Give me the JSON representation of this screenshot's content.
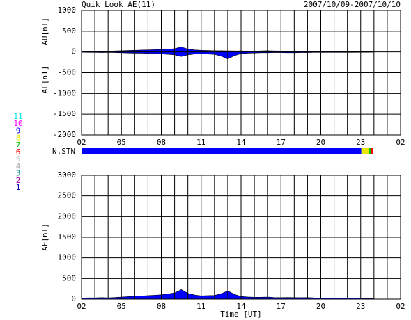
{
  "header": {
    "title": "Quik Look AE(11)",
    "date": "2007/10/09-2007/10/10"
  },
  "stations": {
    "label": "N.STN",
    "legend": [
      {
        "label": 11,
        "color": "#00e0e0"
      },
      {
        "label": 10,
        "color": "#ff00ff"
      },
      {
        "label": 9,
        "color": "#0000ff"
      },
      {
        "label": 8,
        "color": "#e8e800"
      },
      {
        "label": 7,
        "color": "#00c000"
      },
      {
        "label": 6,
        "color": "#ff0000"
      },
      {
        "label": 5,
        "color": "#c8c8c8"
      },
      {
        "label": 4,
        "color": "#a8a8a8"
      },
      {
        "label": 3,
        "color": "#008888"
      },
      {
        "label": 2,
        "color": "#a000a0"
      },
      {
        "label": 1,
        "color": "#0000c0"
      }
    ],
    "bins": [
      0,
      21.05,
      21.6,
      21.8,
      21.95
    ],
    "counts": [
      9,
      8,
      7,
      6
    ]
  },
  "chart_data": [
    {
      "type": "area",
      "ylabels": [
        "AU[nT]",
        "AL[nT]"
      ],
      "x": [
        0,
        0.5,
        1,
        1.5,
        2,
        2.5,
        3,
        3.5,
        4,
        4.5,
        5,
        5.5,
        6,
        6.5,
        7,
        7.5,
        8,
        8.5,
        9,
        9.5,
        10,
        10.5,
        11,
        11.5,
        12,
        12.5,
        13,
        13.5,
        14,
        14.5,
        15,
        15.5,
        16,
        16.5,
        17,
        17.5,
        18,
        18.5,
        19,
        19.5,
        20,
        20.5,
        21,
        21.5,
        22
      ],
      "series": [
        {
          "name": "AU",
          "color": "#0000ff",
          "values": [
            15,
            18,
            20,
            22,
            20,
            25,
            30,
            35,
            40,
            45,
            50,
            55,
            60,
            65,
            80,
            120,
            70,
            50,
            40,
            35,
            30,
            30,
            28,
            25,
            25,
            22,
            20,
            25,
            30,
            25,
            22,
            20,
            18,
            20,
            22,
            20,
            18,
            15,
            15,
            15,
            15,
            15,
            12,
            10,
            10
          ]
        },
        {
          "name": "AL",
          "color": "#0000ff",
          "values": [
            -10,
            -12,
            -10,
            -15,
            -10,
            -15,
            -20,
            -25,
            -30,
            -30,
            -35,
            -40,
            -45,
            -60,
            -70,
            -110,
            -70,
            -50,
            -40,
            -50,
            -60,
            -100,
            -170,
            -90,
            -40,
            -30,
            -25,
            -20,
            -20,
            -15,
            -15,
            -20,
            -20,
            -15,
            -15,
            -10,
            -10,
            -10,
            -12,
            -10,
            -10,
            -10,
            -8,
            -8,
            -5
          ]
        }
      ],
      "xlim": [
        0,
        24
      ],
      "xticks": [
        {
          "value": 0,
          "label": "02"
        },
        {
          "value": 3,
          "label": "05"
        },
        {
          "value": 6,
          "label": "08"
        },
        {
          "value": 9,
          "label": "11"
        },
        {
          "value": 12,
          "label": "14"
        },
        {
          "value": 15,
          "label": "17"
        },
        {
          "value": 18,
          "label": "20"
        },
        {
          "value": 21,
          "label": "23"
        },
        {
          "value": 24,
          "label": "02"
        }
      ],
      "xgrid": [
        0,
        1,
        2,
        3,
        4,
        5,
        6,
        7,
        8,
        9,
        10,
        11,
        12,
        13,
        14,
        15,
        16,
        17,
        18,
        19,
        20,
        21,
        22,
        23,
        24
      ],
      "ylim": [
        -2000,
        1000
      ],
      "yticks": [
        1000,
        500,
        0,
        -500,
        -1000,
        -1500,
        -2000
      ]
    },
    {
      "type": "area",
      "ylabels": [
        "AE[nT]"
      ],
      "xlabel": "Time [UT]",
      "x": [
        0,
        0.5,
        1,
        1.5,
        2,
        2.5,
        3,
        3.5,
        4,
        4.5,
        5,
        5.5,
        6,
        6.5,
        7,
        7.5,
        8,
        8.5,
        9,
        9.5,
        10,
        10.5,
        11,
        11.5,
        12,
        12.5,
        13,
        13.5,
        14,
        14.5,
        15,
        15.5,
        16,
        16.5,
        17,
        17.5,
        18,
        18.5,
        19,
        19.5,
        20,
        20.5,
        21,
        21.5,
        22
      ],
      "series": [
        {
          "name": "AE",
          "color": "#0000ff",
          "values": [
            25,
            30,
            30,
            37,
            30,
            40,
            50,
            60,
            70,
            75,
            85,
            95,
            105,
            125,
            150,
            230,
            140,
            100,
            80,
            85,
            90,
            130,
            198,
            115,
            65,
            52,
            45,
            45,
            50,
            40,
            37,
            40,
            38,
            35,
            37,
            30,
            28,
            25,
            27,
            25,
            25,
            25,
            20,
            18,
            15
          ]
        }
      ],
      "xlim": [
        0,
        24
      ],
      "xticks": [
        {
          "value": 0,
          "label": "02"
        },
        {
          "value": 3,
          "label": "05"
        },
        {
          "value": 6,
          "label": "08"
        },
        {
          "value": 9,
          "label": "11"
        },
        {
          "value": 12,
          "label": "14"
        },
        {
          "value": 15,
          "label": "17"
        },
        {
          "value": 18,
          "label": "20"
        },
        {
          "value": 21,
          "label": "23"
        },
        {
          "value": 24,
          "label": "02"
        }
      ],
      "xgrid": [
        0,
        1,
        2,
        3,
        4,
        5,
        6,
        7,
        8,
        9,
        10,
        11,
        12,
        13,
        14,
        15,
        16,
        17,
        18,
        19,
        20,
        21,
        22,
        23,
        24
      ],
      "ylim": [
        0,
        3000
      ],
      "yticks": [
        3000,
        2500,
        2000,
        1500,
        1000,
        500,
        0
      ]
    }
  ]
}
